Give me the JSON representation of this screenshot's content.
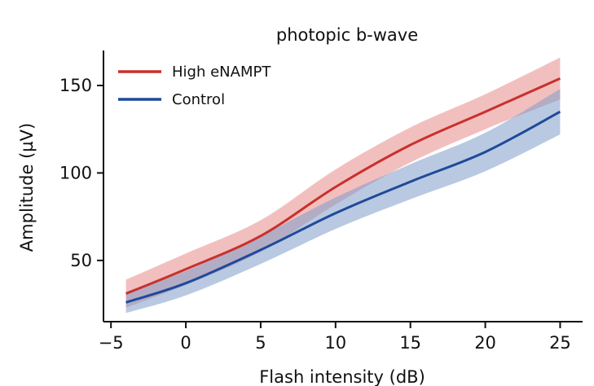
{
  "chart_data": {
    "type": "line",
    "title": "photopic b-wave",
    "xlabel": "Flash intensity (dB)",
    "ylabel": "Amplitude (µV)",
    "xlim": [
      -5.5,
      26.5
    ],
    "ylim": [
      15,
      170
    ],
    "xticks": [
      -5,
      0,
      5,
      10,
      15,
      20,
      25
    ],
    "xtick_labels": [
      "−5",
      "0",
      "5",
      "10",
      "15",
      "20",
      "25"
    ],
    "yticks": [
      50,
      100,
      150
    ],
    "ytick_labels": [
      "50",
      "100",
      "150"
    ],
    "grid": false,
    "legend_position": "top-left",
    "series": [
      {
        "name": "High eNAMPT",
        "color": "#c8312c",
        "band_color": "#e78a8a",
        "x": [
          -4,
          0,
          5,
          10,
          15,
          20,
          25
        ],
        "y": [
          31,
          45,
          64,
          92,
          116,
          135,
          154
        ],
        "band_half_width": [
          8,
          9,
          9,
          10,
          10,
          10,
          12
        ]
      },
      {
        "name": "Control",
        "color": "#1f4a99",
        "band_color": "#7f9dcb",
        "x": [
          -4,
          0,
          5,
          10,
          15,
          20,
          25
        ],
        "y": [
          26,
          37,
          56,
          77,
          95,
          112,
          135
        ],
        "band_half_width": [
          6,
          7,
          8,
          9,
          10,
          11,
          13
        ]
      }
    ]
  }
}
